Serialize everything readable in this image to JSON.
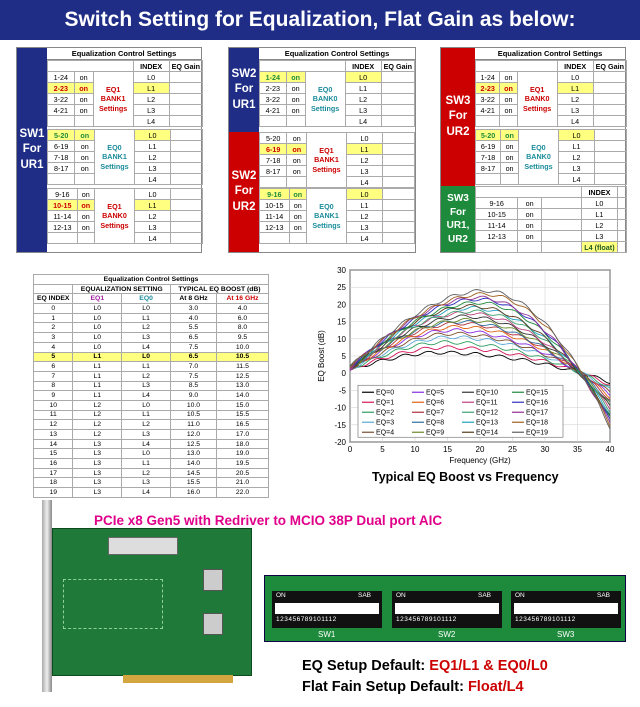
{
  "title": "Switch Setting for Equalization, Flat Gain as below:",
  "ctrl_title": "Equalization Control Settings",
  "col_index": "INDEX",
  "col_eqgain": "EQ Gain",
  "idx": [
    "L0",
    "L1",
    "L2",
    "L3",
    "L4"
  ],
  "b1": {
    "label": "SW1\nFor\nUR1",
    "g1": {
      "rows": [
        [
          "1-24",
          "on"
        ],
        [
          "2-23",
          "on"
        ],
        [
          "3-22",
          "on"
        ],
        [
          "4-21",
          "on"
        ]
      ],
      "bank": "EQ1\nBANK1\nSettings"
    },
    "g2": {
      "rows": [
        [
          "5-20",
          "on"
        ],
        [
          "6-19",
          "on"
        ],
        [
          "7-18",
          "on"
        ],
        [
          "8-17",
          "on"
        ]
      ],
      "bank": "EQ0\nBANK1\nSettings"
    },
    "g3": {
      "rows": [
        [
          "9-16",
          "on"
        ],
        [
          "10-15",
          "on"
        ],
        [
          "11-14",
          "on"
        ],
        [
          "12-13",
          "on"
        ]
      ],
      "bank": "EQ1\nBANK0\nSettings"
    }
  },
  "b2": {
    "label1": "SW2\nFor\nUR1",
    "label2": "SW2\nFor\nUR2",
    "g1": {
      "rows": [
        [
          "1-24",
          "on"
        ],
        [
          "2-23",
          "on"
        ],
        [
          "3-22",
          "on"
        ],
        [
          "4-21",
          "on"
        ]
      ],
      "bank": "EQ0\nBANK0\nSettings"
    },
    "g2": {
      "rows": [
        [
          "5-20",
          "on"
        ],
        [
          "6-19",
          "on"
        ],
        [
          "7-18",
          "on"
        ],
        [
          "8-17",
          "on"
        ]
      ],
      "bank": "EQ1\nBANK1\nSettings"
    },
    "g3": {
      "rows": [
        [
          "9-16",
          "on"
        ],
        [
          "10-15",
          "on"
        ],
        [
          "11-14",
          "on"
        ],
        [
          "12-13",
          "on"
        ]
      ],
      "bank": "EQ0\nBANK1\nSettings"
    }
  },
  "b3": {
    "label1": "SW3\nFor\nUR2",
    "label2": "SW3\nFor\nUR1,\nUR2",
    "g1": {
      "rows": [
        [
          "1-24",
          "on"
        ],
        [
          "2-23",
          "on"
        ],
        [
          "3-22",
          "on"
        ],
        [
          "4-21",
          "on"
        ]
      ],
      "bank": "EQ1\nBANK0\nSettings"
    },
    "g2": {
      "rows": [
        [
          "5-20",
          "on"
        ],
        [
          "6-19",
          "on"
        ],
        [
          "7-18",
          "on"
        ],
        [
          "8-17",
          "on"
        ]
      ],
      "bank": "EQ0\nBANK0\nSettings"
    },
    "g3": {
      "rows": [
        [
          "9-16",
          "on"
        ],
        [
          "10-15",
          "on"
        ],
        [
          "11-14",
          "on"
        ],
        [
          "12-13",
          "on"
        ]
      ],
      "idx": [
        "L0",
        "L1",
        "L2",
        "L3",
        "L4 (float)"
      ]
    }
  },
  "eqtable": {
    "title": "Equalization Control Settings",
    "h1a": "EQUALIZATION SETTING",
    "h1b": "TYPICAL EQ BOOST (dB)",
    "h2": [
      "EQ INDEX",
      "EQ1",
      "EQ0",
      "At 8 GHz",
      "At 16 GHz"
    ],
    "rows": [
      [
        "0",
        "L0",
        "L0",
        "3.0",
        "4.0"
      ],
      [
        "1",
        "L0",
        "L1",
        "4.0",
        "6.0"
      ],
      [
        "2",
        "L0",
        "L2",
        "5.5",
        "8.0"
      ],
      [
        "3",
        "L0",
        "L3",
        "6.5",
        "9.5"
      ],
      [
        "4",
        "L0",
        "L4",
        "7.5",
        "10.0"
      ],
      [
        "5",
        "L1",
        "L0",
        "6.5",
        "10.5"
      ],
      [
        "6",
        "L1",
        "L1",
        "7.0",
        "11.5"
      ],
      [
        "7",
        "L1",
        "L2",
        "7.5",
        "12.5"
      ],
      [
        "8",
        "L1",
        "L3",
        "8.5",
        "13.0"
      ],
      [
        "9",
        "L1",
        "L4",
        "9.0",
        "14.0"
      ],
      [
        "10",
        "L2",
        "L0",
        "10.0",
        "15.0"
      ],
      [
        "11",
        "L2",
        "L1",
        "10.5",
        "15.5"
      ],
      [
        "12",
        "L2",
        "L2",
        "11.0",
        "16.5"
      ],
      [
        "13",
        "L2",
        "L3",
        "12.0",
        "17.0"
      ],
      [
        "14",
        "L3",
        "L4",
        "12.5",
        "18.0"
      ],
      [
        "15",
        "L3",
        "L0",
        "13.0",
        "19.0"
      ],
      [
        "16",
        "L3",
        "L1",
        "14.0",
        "19.5"
      ],
      [
        "17",
        "L3",
        "L2",
        "14.5",
        "20.5"
      ],
      [
        "18",
        "L3",
        "L3",
        "15.5",
        "21.0"
      ],
      [
        "19",
        "L3",
        "L4",
        "16.0",
        "22.0"
      ]
    ]
  },
  "chart_data": {
    "type": "line",
    "title": "Typical EQ Boost vs Frequency",
    "xlabel": "Frequency (GHz)",
    "ylabel": "EQ Boost (dB)",
    "xlim": [
      0,
      40
    ],
    "ylim": [
      -20,
      30
    ],
    "xticks": [
      0,
      5,
      10,
      15,
      20,
      25,
      30,
      35,
      40
    ],
    "yticks": [
      -20,
      -15,
      -10,
      -5,
      0,
      5,
      10,
      15,
      20,
      25,
      30
    ],
    "series": [
      {
        "name": "EQ=0",
        "peak": 6,
        "peak_x": 14,
        "color": "#000000"
      },
      {
        "name": "EQ=1",
        "peak": 7.5,
        "peak_x": 15,
        "color": "#d4145a"
      },
      {
        "name": "EQ=2",
        "peak": 9,
        "peak_x": 15,
        "color": "#2c9f5f"
      },
      {
        "name": "EQ=3",
        "peak": 10.5,
        "peak_x": 16,
        "color": "#5aa9d6"
      },
      {
        "name": "EQ=4",
        "peak": 11.5,
        "peak_x": 16,
        "color": "#7a4e2d"
      },
      {
        "name": "EQ=5",
        "peak": 12.5,
        "peak_x": 16,
        "color": "#8a2be2"
      },
      {
        "name": "EQ=6",
        "peak": 13.5,
        "peak_x": 17,
        "color": "#e06010"
      },
      {
        "name": "EQ=7",
        "peak": 14.5,
        "peak_x": 17,
        "color": "#b0303a"
      },
      {
        "name": "EQ=8",
        "peak": 15,
        "peak_x": 17,
        "color": "#2f6f9f"
      },
      {
        "name": "EQ=9",
        "peak": 15.5,
        "peak_x": 18,
        "color": "#6a8a2a"
      },
      {
        "name": "EQ=10",
        "peak": 16.5,
        "peak_x": 18,
        "color": "#333333"
      },
      {
        "name": "EQ=11",
        "peak": 17.5,
        "peak_x": 18,
        "color": "#c04080"
      },
      {
        "name": "EQ=12",
        "peak": 18,
        "peak_x": 19,
        "color": "#40a070"
      },
      {
        "name": "EQ=13",
        "peak": 19,
        "peak_x": 19,
        "color": "#20a0c0"
      },
      {
        "name": "EQ=14",
        "peak": 19.5,
        "peak_x": 19,
        "color": "#5a3a1a"
      },
      {
        "name": "EQ=15",
        "peak": 20.5,
        "peak_x": 20,
        "color": "#1e8a3c"
      },
      {
        "name": "EQ=16",
        "peak": 21.5,
        "peak_x": 20,
        "color": "#3030c0"
      },
      {
        "name": "EQ=17",
        "peak": 22,
        "peak_x": 20,
        "color": "#903090"
      },
      {
        "name": "EQ=18",
        "peak": 23,
        "peak_x": 21,
        "color": "#a06020"
      },
      {
        "name": "EQ=19",
        "peak": 24,
        "peak_x": 21,
        "color": "#606060"
      }
    ]
  },
  "product_title": "PCIe x8 Gen5 with Redriver to MCIO 38P Dual port AIC",
  "sw_labels": [
    "SW1",
    "SW2",
    "SW3"
  ],
  "dip_on": "ON",
  "dip_sab": "SAB",
  "dip_nums": "123456789101112",
  "footer1a": "EQ Setup Default: ",
  "footer1b": "EQ1/L1 & EQ0/L0",
  "footer2a": "Flat Fain Setup Default: ",
  "footer2b": "Float/L4"
}
